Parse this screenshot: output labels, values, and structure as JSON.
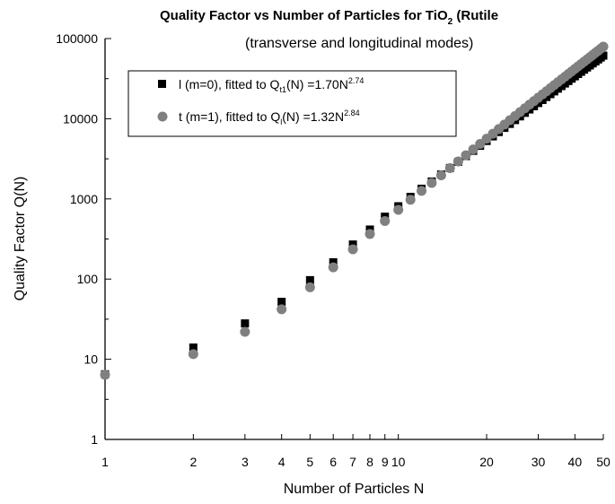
{
  "chart_data": {
    "type": "scatter",
    "title": "Quality Factor vs Number of Particles for TiO",
    "title_subscript": "2",
    "title_suffix": " (Rutile",
    "subtitle": "(transverse and longitudinal modes)",
    "xlabel": "Number of Particles N",
    "ylabel": "Quality Factor Q(N)",
    "x_scale": "log",
    "y_scale": "log",
    "xlim": [
      1,
      50
    ],
    "ylim": [
      1,
      100000
    ],
    "x_tick_labels": [
      {
        "value": 1,
        "label": "1"
      },
      {
        "value": 2,
        "label": "2"
      },
      {
        "value": 3,
        "label": "3"
      },
      {
        "value": 4,
        "label": "4"
      },
      {
        "value": 5,
        "label": "5"
      },
      {
        "value": 6,
        "label": "6"
      },
      {
        "value": 7,
        "label": "7"
      },
      {
        "value": 8,
        "label": "8"
      },
      {
        "value": 9,
        "label": "9"
      },
      {
        "value": 10,
        "label": "10"
      },
      {
        "value": 20,
        "label": "20"
      },
      {
        "value": 30,
        "label": "30"
      },
      {
        "value": 40,
        "label": "40"
      },
      {
        "value": 50,
        "label": "50"
      }
    ],
    "y_tick_labels": [
      {
        "value": 1,
        "label": "1"
      },
      {
        "value": 10,
        "label": "10"
      },
      {
        "value": 100,
        "label": "100"
      },
      {
        "value": 1000,
        "label": "1000"
      },
      {
        "value": 10000,
        "label": "10000"
      },
      {
        "value": 100000,
        "label": "100000"
      }
    ],
    "legend_position": "top-left",
    "series": [
      {
        "marker": "square",
        "color": "#000000",
        "legend_parts": [
          "l (m=0), fitted to Q",
          "t1",
          "(N) =1.70N",
          "2.74"
        ],
        "x": [
          1,
          2,
          3,
          4,
          5,
          6,
          7,
          8,
          9,
          10,
          11,
          12,
          13,
          14,
          15,
          16,
          17,
          18,
          19,
          20,
          21,
          22,
          23,
          24,
          25,
          26,
          27,
          28,
          29,
          30,
          31,
          32,
          33,
          34,
          35,
          36,
          37,
          38,
          39,
          40,
          41,
          42,
          43,
          44,
          45,
          46,
          47,
          48,
          49,
          50
        ],
        "y": [
          6.5,
          14,
          28,
          52,
          97,
          162,
          270,
          415,
          600,
          810,
          1060,
          1340,
          1650,
          2020,
          2430,
          2900,
          3420,
          3980,
          4600,
          5280,
          6020,
          6820,
          7690,
          8620,
          9620,
          10700,
          11840,
          13050,
          14340,
          15700,
          17140,
          18660,
          20260,
          21940,
          23710,
          25560,
          27490,
          29510,
          31620,
          33820,
          36110,
          38500,
          40980,
          43560,
          46240,
          49020,
          51900,
          54890,
          57990,
          61200
        ]
      },
      {
        "marker": "circle",
        "color": "#808080",
        "legend_parts": [
          "t (m=1), fitted to Q",
          "l",
          "(N) =1.32N",
          "2.84"
        ],
        "x": [
          1,
          2,
          3,
          4,
          5,
          6,
          7,
          8,
          9,
          10,
          11,
          12,
          13,
          14,
          15,
          16,
          17,
          18,
          19,
          20,
          21,
          22,
          23,
          24,
          25,
          26,
          27,
          28,
          29,
          30,
          31,
          32,
          33,
          34,
          35,
          36,
          37,
          38,
          39,
          40,
          41,
          42,
          43,
          44,
          45,
          46,
          47,
          48,
          49,
          50
        ],
        "y": [
          6.4,
          11.6,
          22,
          42,
          79,
          140,
          235,
          365,
          530,
          730,
          975,
          1260,
          1580,
          1970,
          2420,
          2930,
          3500,
          4140,
          4850,
          5640,
          6500,
          7440,
          8470,
          9590,
          10800,
          12100,
          13500,
          15000,
          16600,
          18300,
          20100,
          22000,
          24100,
          26300,
          28600,
          31000,
          33500,
          36200,
          39000,
          41900,
          45000,
          48200,
          51500,
          55000,
          58600,
          62400,
          66400,
          70500,
          74800,
          79200
        ]
      }
    ]
  }
}
